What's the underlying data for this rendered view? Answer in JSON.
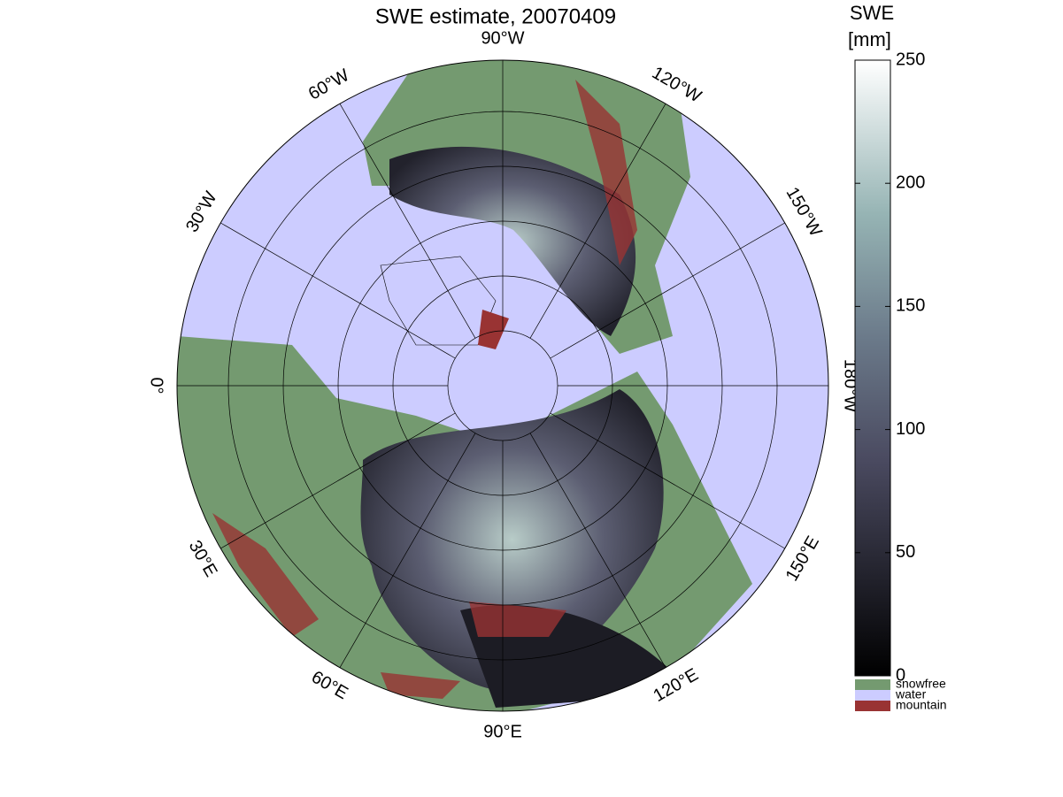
{
  "title": "SWE estimate, 20070409",
  "map": {
    "projection": "polar stereographic",
    "longitude_labels": [
      "0°",
      "30°E",
      "60°E",
      "90°E",
      "120°E",
      "150°E",
      "180°W",
      "150°W",
      "120°W",
      "90°W",
      "60°W",
      "30°W"
    ],
    "background_color": "#ccccff"
  },
  "colorbar": {
    "title": [
      "SWE",
      "[mm]"
    ],
    "lim": [
      0,
      250
    ],
    "ticks": [
      0,
      50,
      100,
      150,
      200,
      250
    ]
  },
  "legend": [
    {
      "name": "snowfree",
      "color": "#749a70"
    },
    {
      "name": "water",
      "color": "#ccccff"
    },
    {
      "name": "mountain",
      "color": "#993333"
    }
  ]
}
